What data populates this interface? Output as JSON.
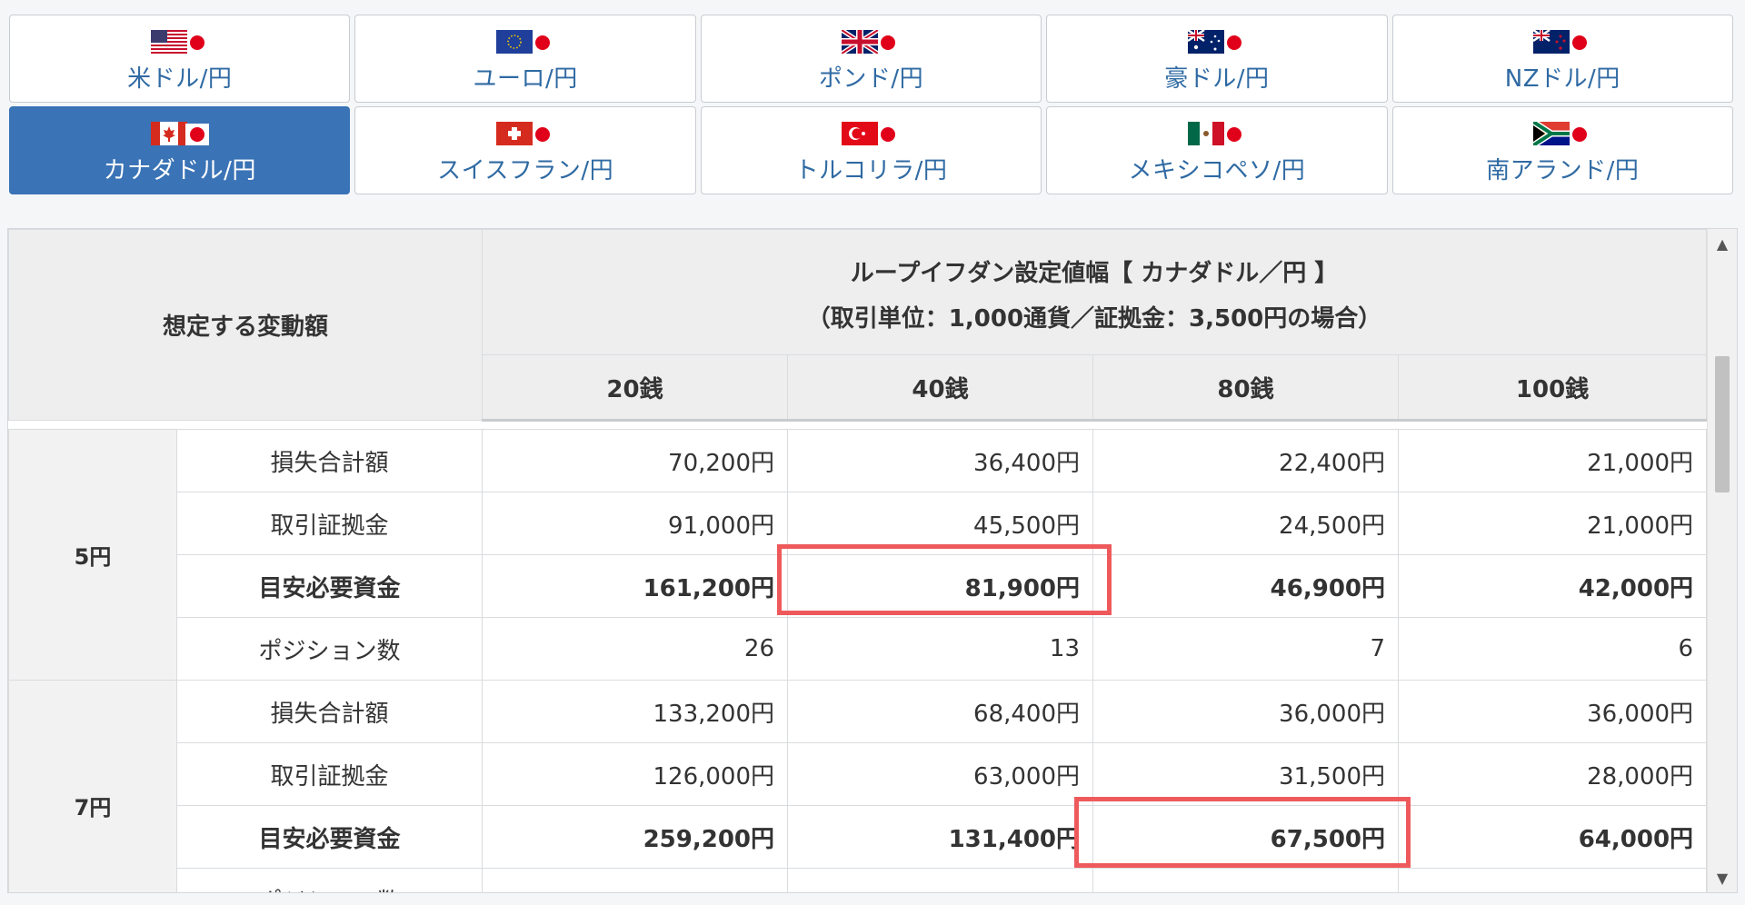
{
  "pairs": [
    {
      "label": "米ドル/円",
      "flag": "us-flag",
      "active": false
    },
    {
      "label": "ユーロ/円",
      "flag": "eu-flag",
      "active": false
    },
    {
      "label": "ポンド/円",
      "flag": "uk-flag",
      "active": false
    },
    {
      "label": "豪ドル/円",
      "flag": "au-flag",
      "active": false
    },
    {
      "label": "NZドル/円",
      "flag": "nz-flag",
      "active": false
    },
    {
      "label": "カナダドル/円",
      "flag": "ca-flag",
      "active": true
    },
    {
      "label": "スイスフラン/円",
      "flag": "ch-flag",
      "active": false
    },
    {
      "label": "トルコリラ/円",
      "flag": "tr-flag",
      "active": false
    },
    {
      "label": "メキシコペソ/円",
      "flag": "mx-flag",
      "active": false
    },
    {
      "label": "南アランド/円",
      "flag": "za-flag",
      "active": false
    }
  ],
  "table": {
    "left_header": "想定する変動額",
    "title": "ループイフダン設定値幅【 カナダドル／円 】",
    "subtitle": "（取引単位：1,000通貨／証拠金：3,500円の場合）",
    "columns": [
      "20銭",
      "40銭",
      "80銭",
      "100銭"
    ],
    "groups": [
      {
        "label": "5円",
        "rows": [
          {
            "label": "損失合計額",
            "values": [
              "70,200円",
              "36,400円",
              "22,400円",
              "21,000円"
            ],
            "bold": false
          },
          {
            "label": "取引証拠金",
            "values": [
              "91,000円",
              "45,500円",
              "24,500円",
              "21,000円"
            ],
            "bold": false
          },
          {
            "label": "目安必要資金",
            "values": [
              "161,200円",
              "81,900円",
              "46,900円",
              "42,000円"
            ],
            "bold": true
          },
          {
            "label": "ポジション数",
            "values": [
              "26",
              "13",
              "7",
              "6"
            ],
            "bold": false
          }
        ]
      },
      {
        "label": "7円",
        "rows": [
          {
            "label": "損失合計額",
            "values": [
              "133,200円",
              "68,400円",
              "36,000円",
              "36,000円"
            ],
            "bold": false
          },
          {
            "label": "取引証拠金",
            "values": [
              "126,000円",
              "63,000円",
              "31,500円",
              "28,000円"
            ],
            "bold": false
          },
          {
            "label": "目安必要資金",
            "values": [
              "259,200円",
              "131,400円",
              "67,500円",
              "64,000円"
            ],
            "bold": true
          },
          {
            "label": "ポジション数",
            "values": [
              "",
              "",
              "",
              ""
            ],
            "bold": false
          }
        ]
      }
    ]
  },
  "highlights": [
    {
      "group": 0,
      "row": 2,
      "col": 1
    },
    {
      "group": 1,
      "row": 2,
      "col": 2
    }
  ],
  "colors": {
    "active_tab": "#3a73b6",
    "link_text": "#2f6aa3",
    "highlight_border": "#ee5a5c",
    "header_bg": "#eeeeee"
  },
  "scrollbar": {
    "up_icon": "arrow-up-icon",
    "down_icon": "arrow-down-icon"
  }
}
